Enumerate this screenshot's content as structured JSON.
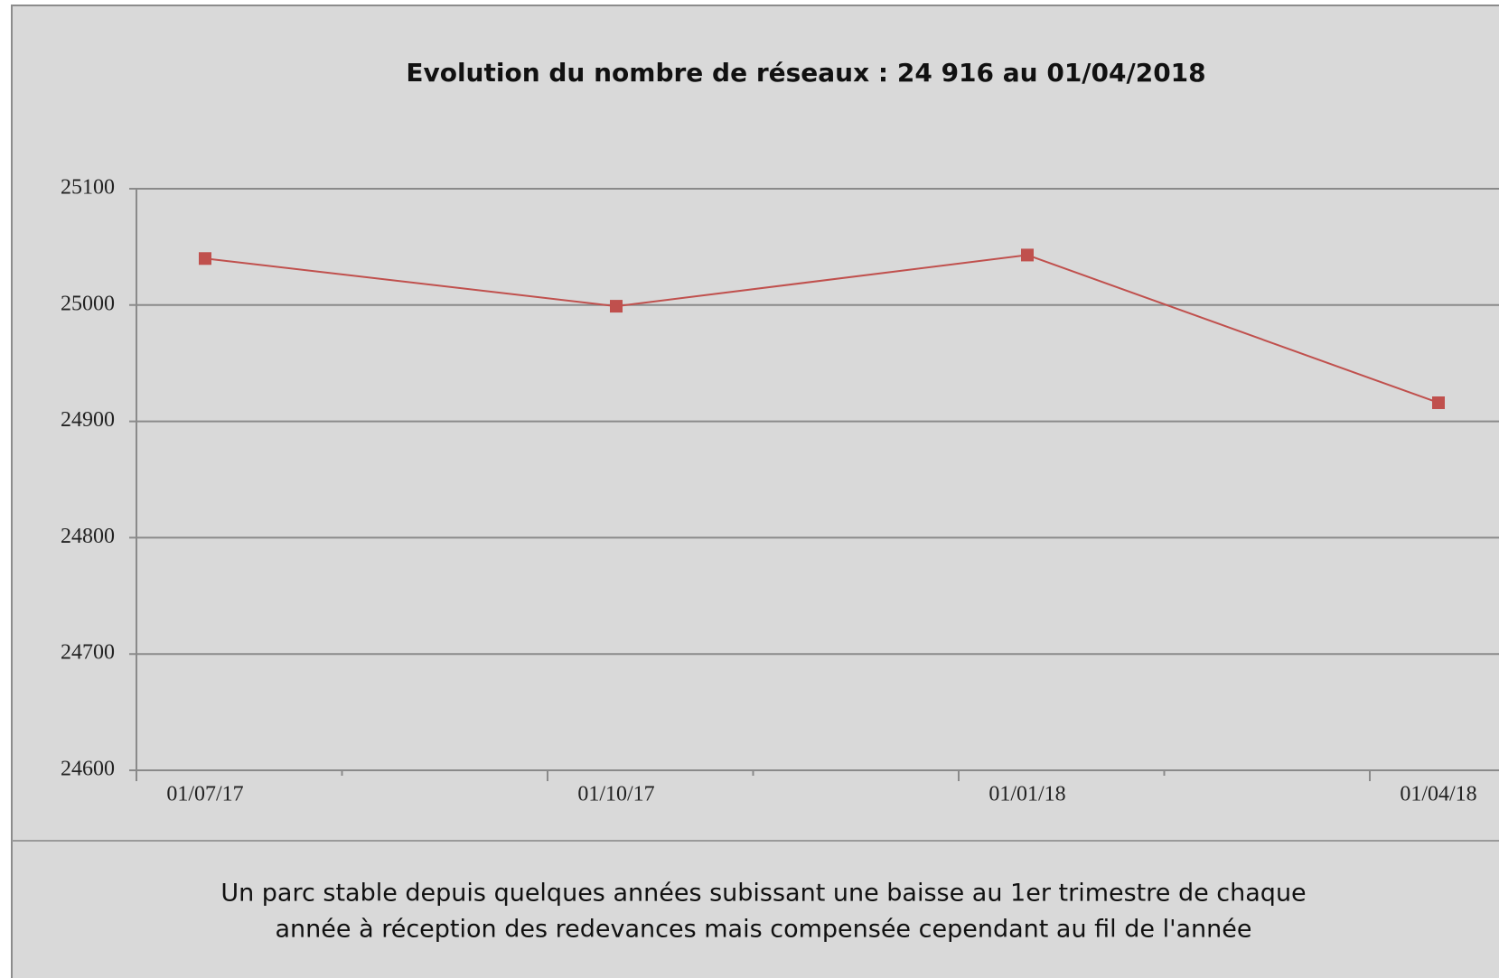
{
  "chart_data": {
    "type": "line",
    "title": "Evolution du nombre de réseaux : 24 916  au  01/04/2018",
    "categories": [
      "01/07/17",
      "01/10/17",
      "01/01/18",
      "01/04/18"
    ],
    "series": [
      {
        "name": "Réseaux",
        "color": "#c0504d",
        "values": [
          25040,
          24999,
          25043,
          24916
        ]
      }
    ],
    "ylim": [
      24600,
      25100
    ],
    "yticks": [
      24600,
      24700,
      24800,
      24900,
      25000,
      25100
    ],
    "grid": true,
    "caption": [
      "Un  parc stable depuis quelques années  subissant une baisse au 1er trimestre de chaque",
      "année  à réception des redevances mais compensée cependant au fil de l'année"
    ]
  }
}
